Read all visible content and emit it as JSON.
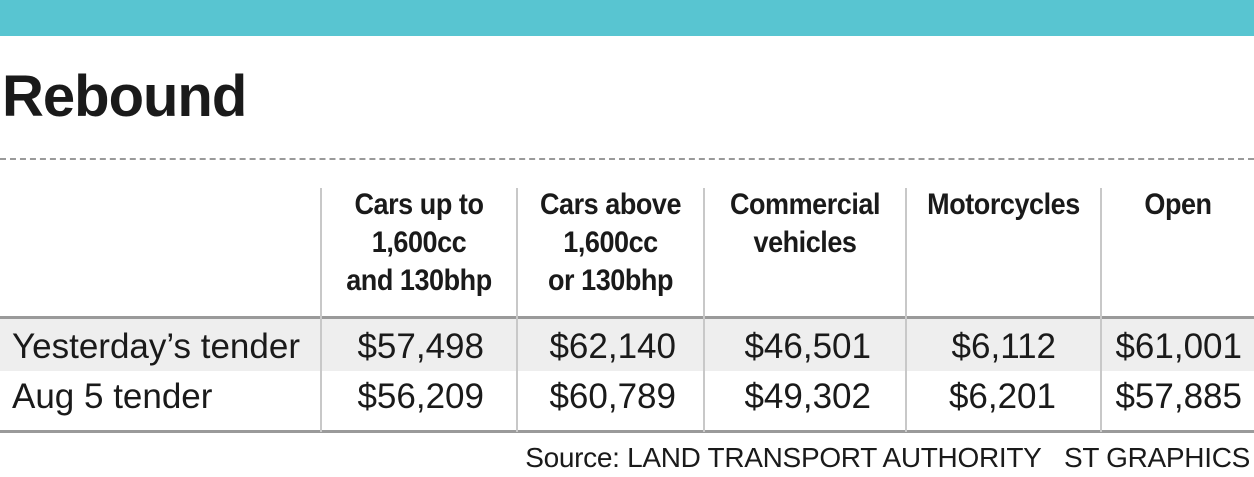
{
  "chart_data": {
    "type": "table",
    "title": "Rebound",
    "columns": [
      {
        "label_lines": [
          "Cars up to",
          "1,600cc",
          "and 130bhp"
        ]
      },
      {
        "label_lines": [
          "Cars above",
          "1,600cc",
          "or 130bhp"
        ]
      },
      {
        "label_lines": [
          "Commercial",
          "vehicles"
        ]
      },
      {
        "label_lines": [
          "Motorcycles"
        ]
      },
      {
        "label_lines": [
          "Open"
        ]
      }
    ],
    "rows": [
      {
        "label": "Yesterday’s tender",
        "cells": [
          "$57,498",
          "$62,140",
          "$46,501",
          "$6,112",
          "$61,001"
        ],
        "values": [
          57498,
          62140,
          46501,
          6112,
          61001
        ]
      },
      {
        "label": "Aug 5 tender",
        "cells": [
          "$56,209",
          "$60,789",
          "$49,302",
          "$6,201",
          "$57,885"
        ],
        "values": [
          56209,
          60789,
          49302,
          6201,
          57885
        ]
      }
    ],
    "source": "Source: LAND TRANSPORT AUTHORITY",
    "credit": "ST GRAPHICS"
  },
  "colors": {
    "top_bar": "#58c5d1",
    "row_highlight": "#eeeeee",
    "rule": "#9a9a9a",
    "divider": "#c8c8c8",
    "text": "#1a1a1a"
  }
}
